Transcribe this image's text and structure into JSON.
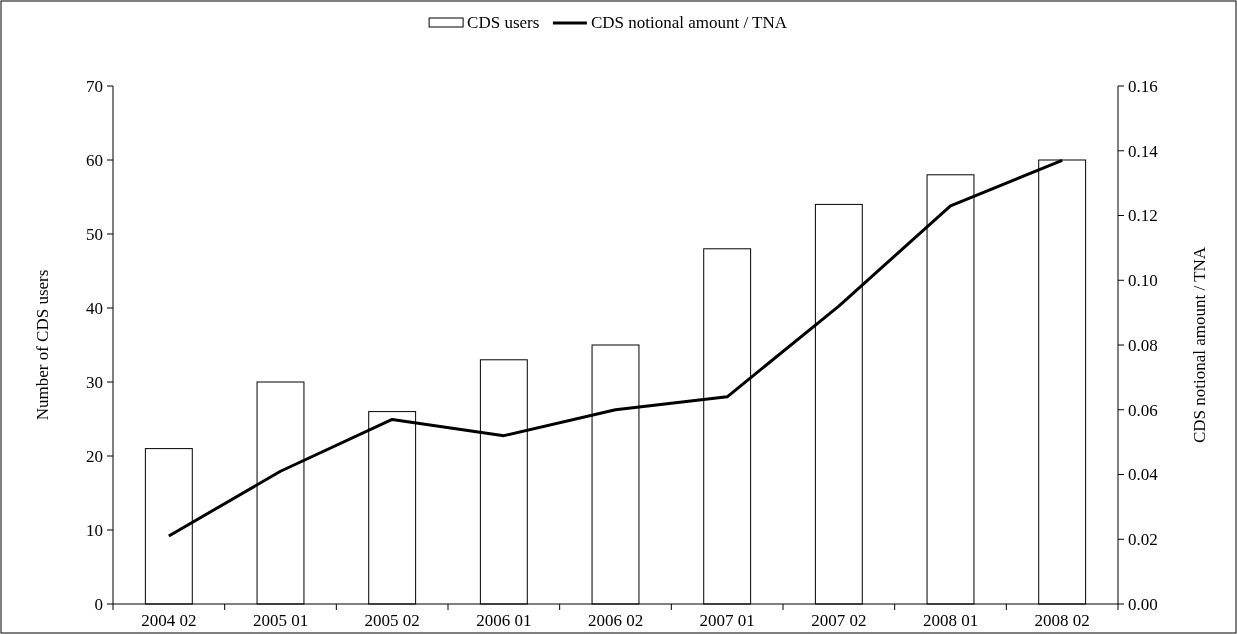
{
  "chart_data": {
    "type": "bar",
    "ylabel": "Number of CDS users",
    "y2label": "CDS notional amount / TNA",
    "categories": [
      "2004 02",
      "2005 01",
      "2005 02",
      "2006 01",
      "2006 02",
      "2007 01",
      "2007 02",
      "2008 01",
      "2008 02"
    ],
    "series": [
      {
        "name": "CDS users",
        "color": "#ffffff",
        "values": [
          21,
          30,
          26,
          33,
          35,
          48,
          54,
          58,
          60
        ]
      },
      {
        "name": "CDS notional amount / TNA",
        "type": "line",
        "axis": "y2",
        "color": "#000000",
        "values": [
          0.021,
          0.041,
          0.057,
          0.052,
          0.06,
          0.064,
          0.092,
          0.123,
          0.137
        ]
      }
    ],
    "ylim": [
      0,
      70
    ],
    "yticks": [
      0,
      10,
      20,
      30,
      40,
      50,
      60,
      70
    ],
    "y2lim": [
      0,
      0.16
    ],
    "y2ticks": [
      {
        "value": 0,
        "label": "0.00"
      },
      {
        "value": 0.02,
        "label": "0.02"
      },
      {
        "value": 0.04,
        "label": "0.04"
      },
      {
        "value": 0.06,
        "label": "0.06"
      },
      {
        "value": 0.08,
        "label": "0.08"
      },
      {
        "value": 0.1,
        "label": "0.10"
      },
      {
        "value": 0.12,
        "label": "0.12"
      },
      {
        "value": 0.14,
        "label": "0.14"
      },
      {
        "value": 0.16,
        "label": "0.16"
      }
    ],
    "legend": "top",
    "grid": false,
    "marker": "none",
    "line_style": "solid"
  }
}
